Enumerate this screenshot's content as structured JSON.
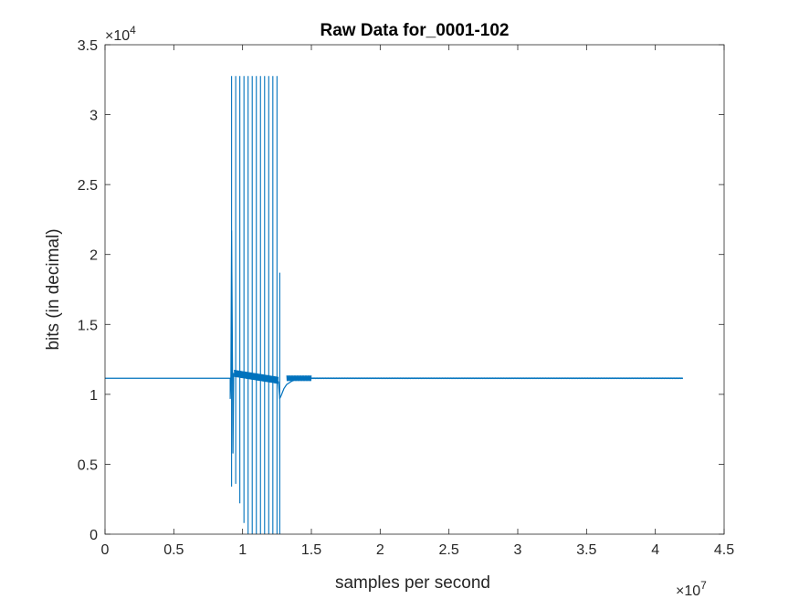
{
  "chart_data": {
    "type": "line",
    "title": "Raw Data for_0001-102",
    "xlabel": "samples per second",
    "ylabel": "bits (in decimal)",
    "x_multiplier": {
      "base": "×10",
      "exp": "7"
    },
    "y_multiplier": {
      "base": "×10",
      "exp": "4"
    },
    "xlim": [
      0,
      45000000
    ],
    "ylim": [
      0,
      35000
    ],
    "x_ticks": [
      0,
      5000000,
      10000000,
      15000000,
      20000000,
      25000000,
      30000000,
      35000000,
      40000000,
      45000000
    ],
    "x_tick_labels": [
      "0",
      "0.5",
      "1",
      "1.5",
      "2",
      "2.5",
      "3",
      "3.5",
      "4",
      "4.5"
    ],
    "y_ticks": [
      0,
      5000,
      10000,
      15000,
      20000,
      25000,
      30000,
      35000
    ],
    "y_tick_labels": [
      "0",
      "0.5",
      "1",
      "1.5",
      "2",
      "2.5",
      "3",
      "3.5"
    ],
    "grid": false,
    "box": true,
    "line_color": "#0072BD",
    "series": [
      {
        "baseline": 11150,
        "x_end": 42000000,
        "x": [
          0,
          9100000,
          9100000,
          9150000,
          9200000,
          9250000,
          9300000,
          9350000,
          9450000,
          9500000,
          9600000,
          9800000,
          10000000,
          10300000,
          10600000,
          10900000,
          11200000,
          11500000,
          11800000,
          12100000,
          12400000,
          12600000,
          12700000,
          12800000,
          13000000,
          13200000,
          13500000,
          13800000,
          14200000,
          14600000,
          15000000,
          42000000
        ],
        "y": [
          11150,
          11150,
          9700,
          11300,
          21700,
          14500,
          5800,
          11500,
          11400,
          11600,
          11400,
          11500,
          11300,
          11400,
          11200,
          11300,
          11200,
          11100,
          11200,
          11000,
          11100,
          10900,
          9700,
          9900,
          10400,
          10700,
          10900,
          11050,
          11100,
          11120,
          11150,
          11150
        ],
        "spikes": [
          {
            "x": 9200000,
            "high": 32767,
            "low": 3400
          },
          {
            "x": 9500000,
            "high": 32767,
            "low": 3600
          },
          {
            "x": 9800000,
            "high": 32767,
            "low": 2200
          },
          {
            "x": 10100000,
            "high": 32767,
            "low": 800
          },
          {
            "x": 10400000,
            "high": 32767,
            "low": 0
          },
          {
            "x": 10700000,
            "high": 32767,
            "low": 0
          },
          {
            "x": 11000000,
            "high": 32767,
            "low": 0
          },
          {
            "x": 11300000,
            "high": 32767,
            "low": 0
          },
          {
            "x": 11600000,
            "high": 32767,
            "low": 0
          },
          {
            "x": 11900000,
            "high": 32767,
            "low": 0
          },
          {
            "x": 12200000,
            "high": 32767,
            "low": 0
          },
          {
            "x": 12500000,
            "high": 32767,
            "low": 0
          },
          {
            "x": 12700000,
            "high": 18700,
            "low": 0
          }
        ],
        "ripple": [
          {
            "x_from": 13200000,
            "x_to": 15000000,
            "amplitude": 200
          },
          {
            "x_from": 15000000,
            "x_to": 42000000,
            "amplitude": 25
          }
        ]
      }
    ]
  }
}
